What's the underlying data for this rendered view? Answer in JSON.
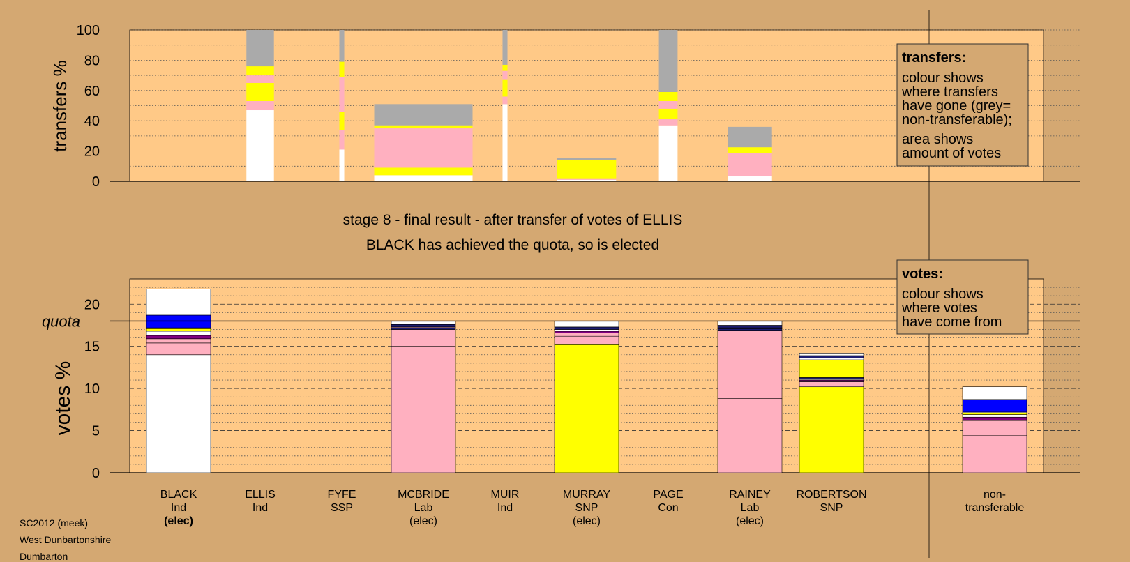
{
  "chart_data": [
    {
      "type": "bar",
      "subtype": "stacked-variable-width",
      "ylabel": "transfers %",
      "ylim": [
        0,
        100
      ],
      "yticks": [
        0,
        20,
        40,
        60,
        80,
        100
      ],
      "candidates": [
        {
          "name": "BLACK",
          "party": "Ind",
          "status": "(elec)",
          "width": 0,
          "segments": []
        },
        {
          "name": "ELLIS",
          "party": "Ind",
          "status": "",
          "width": 0.28,
          "segments": [
            {
              "color": "#FFFFFF",
              "value": 47
            },
            {
              "color": "#FFB0C0",
              "value": 6
            },
            {
              "color": "#FFFF00",
              "value": 12
            },
            {
              "color": "#FFB0C0",
              "value": 5
            },
            {
              "color": "#FFFF00",
              "value": 6
            },
            {
              "color": "#AAAAAA",
              "value": 24
            }
          ]
        },
        {
          "name": "FYFE",
          "party": "SSP",
          "status": "",
          "width": 0.05,
          "segments": [
            {
              "color": "#FFFFFF",
              "value": 21
            },
            {
              "color": "#FFB0C0",
              "value": 13
            },
            {
              "color": "#FFFF00",
              "value": 12
            },
            {
              "color": "#FFB0C0",
              "value": 23
            },
            {
              "color": "#FFFF00",
              "value": 10
            },
            {
              "color": "#AAAAAA",
              "value": 21
            }
          ]
        },
        {
          "name": "MCBRIDE",
          "party": "Lab",
          "status": "(elec)",
          "width": 1.0,
          "segments": [
            {
              "color": "#FFFFFF",
              "value": 4
            },
            {
              "color": "#FFFF00",
              "value": 5
            },
            {
              "color": "#FFB0C0",
              "value": 26
            },
            {
              "color": "#FFFF00",
              "value": 2
            },
            {
              "color": "#AAAAAA",
              "value": 14
            }
          ]
        },
        {
          "name": "MUIR",
          "party": "Ind",
          "status": "",
          "width": 0.05,
          "segments": [
            {
              "color": "#FFFFFF",
              "value": 51
            },
            {
              "color": "#FFB0C0",
              "value": 5
            },
            {
              "color": "#FFFF00",
              "value": 11
            },
            {
              "color": "#FFB0C0",
              "value": 6
            },
            {
              "color": "#FFFF00",
              "value": 4
            },
            {
              "color": "#AAAAAA",
              "value": 23
            }
          ]
        },
        {
          "name": "MURRAY",
          "party": "SNP",
          "status": "(elec)",
          "width": 0.6,
          "segments": [
            {
              "color": "#FFFFFF",
              "value": 1
            },
            {
              "color": "#FFB0C0",
              "value": 1
            },
            {
              "color": "#FFFF00",
              "value": 12
            },
            {
              "color": "#AAAAAA",
              "value": 1.5
            }
          ]
        },
        {
          "name": "PAGE",
          "party": "Con",
          "status": "",
          "width": 0.19,
          "segments": [
            {
              "color": "#FFFFFF",
              "value": 37
            },
            {
              "color": "#FFB0C0",
              "value": 4
            },
            {
              "color": "#FFFF00",
              "value": 7
            },
            {
              "color": "#FFB0C0",
              "value": 5
            },
            {
              "color": "#FFFF00",
              "value": 6
            },
            {
              "color": "#AAAAAA",
              "value": 41
            }
          ]
        },
        {
          "name": "RAINEY",
          "party": "Lab",
          "status": "(elec)",
          "width": 0.45,
          "segments": [
            {
              "color": "#FFFFFF",
              "value": 3.5
            },
            {
              "color": "#FFB0C0",
              "value": 15
            },
            {
              "color": "#FFFF00",
              "value": 4
            },
            {
              "color": "#AAAAAA",
              "value": 13.5
            }
          ]
        },
        {
          "name": "ROBERTSON",
          "party": "SNP",
          "status": "",
          "width": 0,
          "segments": []
        }
      ]
    },
    {
      "type": "bar",
      "subtype": "stacked",
      "ylabel": "votes %",
      "ylim": [
        0,
        23
      ],
      "yticks": [
        0,
        5,
        10,
        15,
        20
      ],
      "quota": 18,
      "quota_label": "quota",
      "bars": [
        {
          "name": "BLACK",
          "party": "Ind",
          "status": "(elec)",
          "status_bold": true,
          "segments": [
            {
              "color": "#FFFFFF",
              "value": 14.0
            },
            {
              "color": "#FFB0C0",
              "value": 1.4
            },
            {
              "color": "#FFB0C0",
              "value": 0.5
            },
            {
              "color": "#800080",
              "value": 0.4
            },
            {
              "color": "#FFFFFF",
              "value": 0.5
            },
            {
              "color": "#FFFF00",
              "value": 0.3
            },
            {
              "color": "#FFFFFF",
              "value": 0.1
            },
            {
              "color": "#0000FF",
              "value": 1.5
            },
            {
              "color": "#FFFFFF",
              "value": 3.1
            }
          ]
        },
        {
          "name": "ELLIS",
          "party": "Ind",
          "status": "",
          "status_bold": false,
          "segments": []
        },
        {
          "name": "FYFE",
          "party": "SSP",
          "status": "",
          "status_bold": false,
          "segments": []
        },
        {
          "name": "MCBRIDE",
          "party": "Lab",
          "status": "(elec)",
          "status_bold": false,
          "segments": [
            {
              "color": "#FFB0C0",
              "value": 15.0
            },
            {
              "color": "#FFB0C0",
              "value": 2.0
            },
            {
              "color": "#1C1C70",
              "value": 0.2
            },
            {
              "color": "#FFB0C0",
              "value": 0.1
            },
            {
              "color": "#1C1C70",
              "value": 0.3
            },
            {
              "color": "#FFFFFF",
              "value": 0.4
            }
          ]
        },
        {
          "name": "MUIR",
          "party": "Ind",
          "status": "",
          "status_bold": false,
          "segments": []
        },
        {
          "name": "MURRAY",
          "party": "SNP",
          "status": "(elec)",
          "status_bold": false,
          "segments": [
            {
              "color": "#FFFF00",
              "value": 15.2
            },
            {
              "color": "#FFB0C0",
              "value": 1.0
            },
            {
              "color": "#FFB0C0",
              "value": 0.4
            },
            {
              "color": "#800080",
              "value": 0.2
            },
            {
              "color": "#FFFFFF",
              "value": 0.2
            },
            {
              "color": "#1C1C70",
              "value": 0.3
            },
            {
              "color": "#FFFFFF",
              "value": 0.7
            }
          ]
        },
        {
          "name": "PAGE",
          "party": "Con",
          "status": "",
          "status_bold": false,
          "segments": []
        },
        {
          "name": "RAINEY",
          "party": "Lab",
          "status": "(elec)",
          "status_bold": false,
          "segments": [
            {
              "color": "#FFB0C0",
              "value": 8.8
            },
            {
              "color": "#FFB0C0",
              "value": 8.1
            },
            {
              "color": "#1C1C70",
              "value": 0.2
            },
            {
              "color": "#FFB0C0",
              "value": 0.1
            },
            {
              "color": "#1C1C70",
              "value": 0.3
            },
            {
              "color": "#FFFFFF",
              "value": 0.5
            }
          ]
        },
        {
          "name": "ROBERTSON",
          "party": "SNP",
          "status": "",
          "status_bold": false,
          "segments": [
            {
              "color": "#FFFF00",
              "value": 10.2
            },
            {
              "color": "#FFB0C0",
              "value": 0.6
            },
            {
              "color": "#800080",
              "value": 0.2
            },
            {
              "color": "#FFFFFF",
              "value": 0.1
            },
            {
              "color": "#1C1C70",
              "value": 0.2
            },
            {
              "color": "#FFFF00",
              "value": 2.1
            },
            {
              "color": "#FFFFFF",
              "value": 0.2
            },
            {
              "color": "#1C1C70",
              "value": 0.3
            },
            {
              "color": "#FFFFFF",
              "value": 0.3
            }
          ]
        },
        {
          "name": "non-",
          "party": "transferable",
          "status": "",
          "status_bold": false,
          "segments": [
            {
              "color": "#FFB0C0",
              "value": 4.4
            },
            {
              "color": "#FFB0C0",
              "value": 1.8
            },
            {
              "color": "#800080",
              "value": 0.4
            },
            {
              "color": "#FFFFFF",
              "value": 0.3
            },
            {
              "color": "#FFFF00",
              "value": 0.2
            },
            {
              "color": "#FFFFFF",
              "value": 0.1
            },
            {
              "color": "#0000FF",
              "value": 1.5
            },
            {
              "color": "#FFFFFF",
              "value": 1.5
            }
          ]
        }
      ]
    }
  ],
  "stage_title": "stage 8 - final result - after transfer of votes of ELLIS",
  "stage_subtitle": "BLACK has achieved the quota, so is elected",
  "legend_transfers": {
    "heading": "transfers:",
    "lines1": [
      "colour shows",
      "where transfers",
      "have gone (grey=",
      "non-transferable);"
    ],
    "lines2": [
      "area shows",
      "amount of votes"
    ]
  },
  "legend_votes": {
    "heading": "votes:",
    "lines1": [
      "colour shows",
      "where votes",
      "have come from"
    ]
  },
  "footer": [
    "SC2012 (meek)",
    "West Dunbartonshire",
    "Dumbarton"
  ],
  "colors": {
    "background": "#D4A872",
    "plot_bg": "#FFC987",
    "white": "#FFFFFF",
    "pink": "#FFB0C0",
    "yellow": "#FFFF00",
    "grey": "#AAAAAA",
    "blue": "#0000FF",
    "navy": "#1C1C70",
    "purple": "#800080"
  }
}
